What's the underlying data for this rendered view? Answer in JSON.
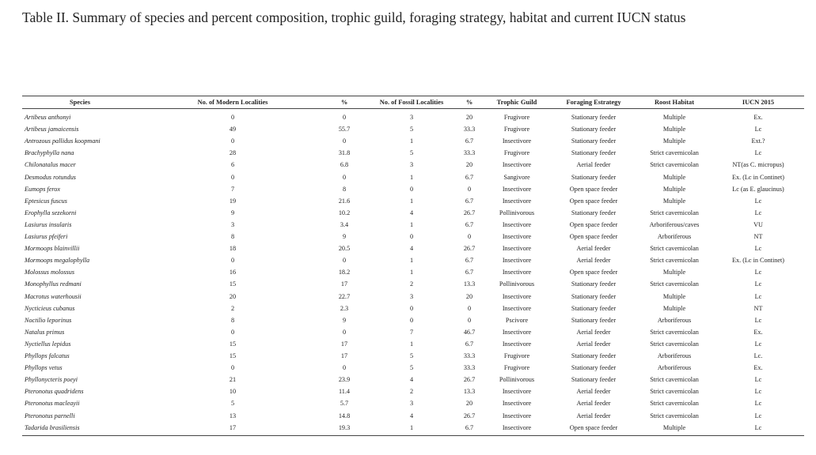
{
  "caption": "Table II. Summary of species and percent composition, trophic guild, foraging strategy, habitat and current IUCN status",
  "headers": [
    "Species",
    "No. of Modern Localities",
    "%",
    "No. of Fossil Localities",
    "%",
    "Trophic Guild",
    "Foraging Estrategy",
    "Roost Habitat",
    "IUCN 2015"
  ],
  "rows": [
    [
      "Artibeus anthonyi",
      "0",
      "0",
      "3",
      "20",
      "Frugivore",
      "Stationary feeder",
      "Multiple",
      "Ex."
    ],
    [
      "Artibeus jamaicensis",
      "49",
      "55.7",
      "5",
      "33.3",
      "Frugivore",
      "Stationary feeder",
      "Multiple",
      "Lc"
    ],
    [
      "Antrozous pallidus koopmani",
      "0",
      "0",
      "1",
      "6.7",
      "Insectivore",
      "Stationary feeder",
      "Multiple",
      "Ext.?"
    ],
    [
      "Brachyphylla nana",
      "28",
      "31.8",
      "5",
      "33.3",
      "Frugivore",
      "Stationary feeder",
      "Strict cavernicolan",
      "Lc"
    ],
    [
      "Chilonatalus macer",
      "6",
      "6.8",
      "3",
      "20",
      "Insectivore",
      "Aerial feeder",
      "Strict cavernicolan",
      "NT(as C. micropus)"
    ],
    [
      "Desmodus rotundus",
      "0",
      "0",
      "1",
      "6.7",
      "Sangivore",
      "Stationary feeder",
      "Multiple",
      "Ex. (Lc in Continet)"
    ],
    [
      "Eumops ferox",
      "7",
      "8",
      "0",
      "0",
      "Insectivore",
      "Open space feeder",
      "Multiple",
      "Lc (as E. glaucinus)"
    ],
    [
      "Eptesicus fuscus",
      "19",
      "21.6",
      "1",
      "6.7",
      "Insectivore",
      "Open space feeder",
      "Multiple",
      "Lc"
    ],
    [
      "Erophylla sezekorni",
      "9",
      "10.2",
      "4",
      "26.7",
      "Pollinivorous",
      "Stationary feeder",
      "Strict cavernicolan",
      "Lc"
    ],
    [
      "Lasiurus insularis",
      "3",
      "3.4",
      "1",
      "6.7",
      "Insectivore",
      "Open space feeder",
      "Arboriferous/caves",
      "VU"
    ],
    [
      "Lasiurus pfeiferi",
      "8",
      "9",
      "0",
      "0",
      "Insectivore",
      "Open space feeder",
      "Arboriferous",
      "NT"
    ],
    [
      "Mormoops blainvillii",
      "18",
      "20.5",
      "4",
      "26.7",
      "Insectivore",
      "Aerial feeder",
      "Strict cavernicolan",
      "Lc"
    ],
    [
      "Mormoops megalophylla",
      "0",
      "0",
      "1",
      "6.7",
      "Insectivore",
      "Aerial feeder",
      "Strict cavernicolan",
      "Ex. (Lc in Continet)"
    ],
    [
      "Molossus molossus",
      "16",
      "18.2",
      "1",
      "6.7",
      "Insectivore",
      "Open space feeder",
      "Multiple",
      "Lc"
    ],
    [
      "Monophyllus redmani",
      "15",
      "17",
      "2",
      "13.3",
      "Pollinivorous",
      "Stationary feeder",
      "Strict cavernicolan",
      "Lc"
    ],
    [
      "Macrotus waterhousii",
      "20",
      "22.7",
      "3",
      "20",
      "Insectivore",
      "Stationary feeder",
      "Multiple",
      "Lc"
    ],
    [
      "Nycticieus cubanus",
      "2",
      "2.3",
      "0",
      "0",
      "Insectivore",
      "Stationary feeder",
      "Multiple",
      "NT"
    ],
    [
      "Noctilio leporinus",
      "8",
      "9",
      "0",
      "0",
      "Pscivore",
      "Stationary feeder",
      "Arboriferous",
      "Lc"
    ],
    [
      "Natalus primus",
      "0",
      "0",
      "7",
      "46.7",
      "Insectivore",
      "Aerial feeder",
      "Strict cavernicolan",
      "Ex."
    ],
    [
      "Nyctiellus lepidus",
      "15",
      "17",
      "1",
      "6.7",
      "Insectivore",
      "Aerial feeder",
      "Strict cavernicolan",
      "Lc"
    ],
    [
      "Phyllops falcatus",
      "15",
      "17",
      "5",
      "33.3",
      "Frugivore",
      "Stationary feeder",
      "Arboriferous",
      "Lc."
    ],
    [
      "Phyllops vetus",
      "0",
      "0",
      "5",
      "33.3",
      "Frugivore",
      "Stationary feeder",
      "Arboriferous",
      "Ex."
    ],
    [
      "Phyllonycteris poeyi",
      "21",
      "23.9",
      "4",
      "26.7",
      "Pollinivorous",
      "Stationary feeder",
      "Strict cavernicolan",
      "Lc"
    ],
    [
      "Pteronotus quadridens",
      "10",
      "11.4",
      "2",
      "13.3",
      "Insectivore",
      "Aerial feeder",
      "Strict cavernicolan",
      "Lc"
    ],
    [
      "Pteronotus macleayii",
      "5",
      "5.7",
      "3",
      "20",
      "Insectivore",
      "Aerial feeder",
      "Strict cavernicolan",
      "Lc"
    ],
    [
      "Pteronotus parnelli",
      "13",
      "14.8",
      "4",
      "26.7",
      "Insectivore",
      "Aerial feeder",
      "Strict cavernicolan",
      "Lc"
    ],
    [
      "Tadarida brasiliensis",
      "17",
      "19.3",
      "1",
      "6.7",
      "Insectivore",
      "Open space feeder",
      "Multiple",
      "Lc"
    ]
  ]
}
